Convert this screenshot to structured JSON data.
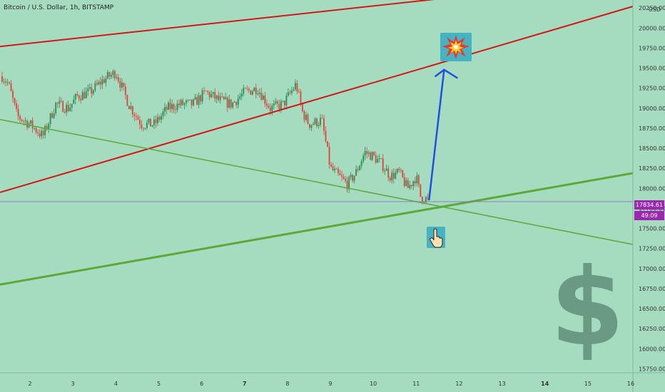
{
  "header": {
    "title": "Bitcoin / U.S. Dollar, 1h, BITSTAMP",
    "currency": "USD"
  },
  "price_label": {
    "price": "17834.61",
    "countdown": "49:09"
  },
  "colors": {
    "background": "#a5dcc0",
    "candle_up": "#1f8f55",
    "candle_down": "#e0413b",
    "red_trendline": "#d21717",
    "green_trendline": "#5ea838",
    "arrow": "#1f4fe0",
    "dollar_sign": "#6a9a84",
    "price_badge": "#9c27b0"
  },
  "icons": {
    "target": "explosion-icon",
    "support": "hand-pointing-icon",
    "watermark": "dollar-sign-icon"
  },
  "chart_data": {
    "type": "candlestick",
    "title": "Bitcoin / U.S. Dollar, 1h, BITSTAMP",
    "xlabel": "",
    "ylabel": "",
    "y_axis": {
      "ticks": [
        20250,
        20000,
        19750,
        19500,
        19250,
        19000,
        18750,
        18500,
        18250,
        18000,
        17750,
        17500,
        17250,
        17000,
        16750,
        16500,
        16250,
        16000,
        15750
      ],
      "tick_labels": [
        "20250.00",
        "20000.00",
        "19750.00",
        "19500.00",
        "19250.00",
        "19000.00",
        "18750.00",
        "18500.00",
        "18250.00",
        "18000.00",
        "17750.00",
        "17500.00",
        "17250.00",
        "17000.00",
        "16750.00",
        "16500.00",
        "16250.00",
        "16000.00",
        "15750.00"
      ],
      "range": [
        15700,
        20350
      ]
    },
    "x_axis": {
      "ticks": [
        2,
        3,
        4,
        5,
        6,
        7,
        8,
        9,
        10,
        11,
        12,
        13,
        14,
        15,
        16
      ],
      "tick_labels": [
        "2",
        "3",
        "4",
        "5",
        "6",
        "7",
        "8",
        "9",
        "10",
        "11",
        "12",
        "13",
        "14",
        "15",
        "16"
      ],
      "bold_ticks": [
        "7",
        "14"
      ],
      "range": [
        1.3,
        16.05
      ]
    },
    "price_path": {
      "x": [
        1.35,
        1.5,
        1.7,
        2.0,
        2.3,
        2.6,
        2.9,
        3.1,
        3.4,
        3.7,
        4.0,
        4.3,
        4.6,
        4.9,
        5.2,
        5.5,
        5.8,
        6.1,
        6.4,
        6.7,
        7.0,
        7.3,
        7.6,
        7.9,
        8.2,
        8.35,
        8.5,
        8.8,
        9.0,
        9.2,
        9.4,
        9.6,
        9.8,
        10.0,
        10.2,
        10.4,
        10.6,
        10.8,
        11.0,
        11.1,
        11.3
      ],
      "close": [
        19400,
        19300,
        18900,
        18800,
        18650,
        19050,
        19000,
        19150,
        19200,
        19350,
        19450,
        19050,
        18800,
        18800,
        19000,
        19050,
        19050,
        19200,
        19100,
        19050,
        19200,
        19250,
        19000,
        19050,
        19300,
        18950,
        18800,
        18850,
        18250,
        18150,
        18050,
        18200,
        18450,
        18400,
        18300,
        18150,
        18200,
        18000,
        18150,
        17900,
        17850
      ]
    },
    "trendlines": [
      {
        "color": "red",
        "x": [
          1.3,
          13.0
        ],
        "y": [
          19770,
          20450
        ]
      },
      {
        "color": "red",
        "x": [
          1.3,
          16.05
        ],
        "y": [
          17950,
          20270
        ]
      },
      {
        "color": "green",
        "x": [
          1.3,
          16.05
        ],
        "y": [
          18860,
          17300
        ]
      },
      {
        "color": "green",
        "x": [
          1.3,
          16.05
        ],
        "y": [
          16800,
          18190
        ]
      }
    ],
    "projection_arrow": {
      "x": [
        11.3,
        11.65,
        11.95
      ],
      "y": [
        17860,
        19480,
        19380
      ]
    },
    "current_price": 17834.61,
    "countdown": "49:09"
  }
}
